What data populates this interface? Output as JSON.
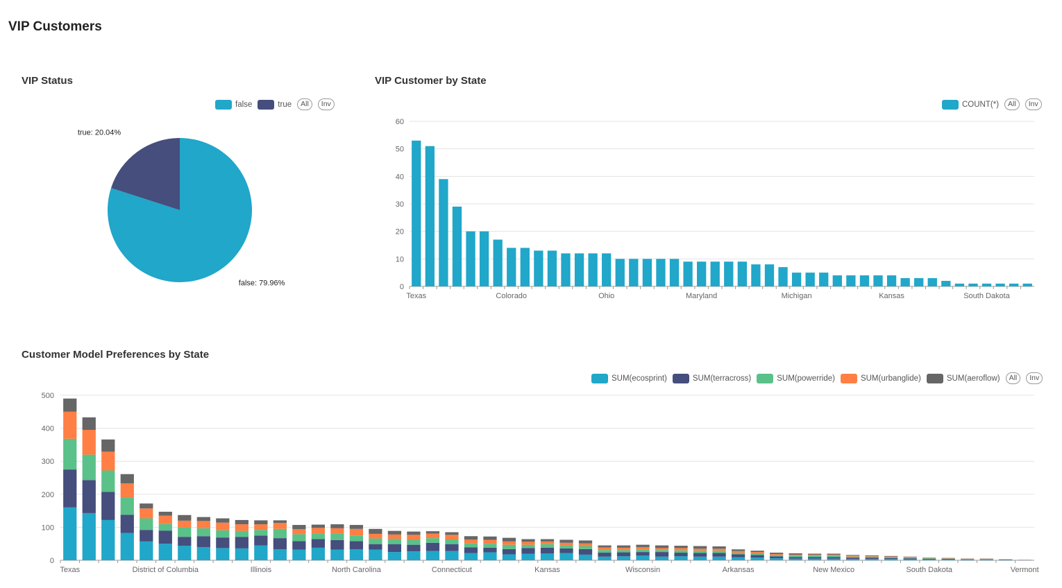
{
  "page": {
    "title": "VIP Customers"
  },
  "colors": {
    "c1": "#20a7c9",
    "c2": "#454e7c",
    "c3": "#5ac189",
    "c4": "#ff7f44",
    "c5": "#666666"
  },
  "panels": {
    "vip_status": {
      "title": "VIP Status",
      "legend": [
        {
          "label": "false",
          "color": "#20a7c9"
        },
        {
          "label": "true",
          "color": "#454e7c"
        }
      ],
      "all_label": "All",
      "inv_label": "Inv"
    },
    "vip_by_state": {
      "title": "VIP Customer by State",
      "legend": [
        {
          "label": "COUNT(*)",
          "color": "#20a7c9"
        }
      ],
      "all_label": "All",
      "inv_label": "Inv"
    },
    "model_prefs": {
      "title": "Customer Model Preferences by State",
      "legend": [
        {
          "label": "SUM(ecosprint)",
          "color": "#20a7c9"
        },
        {
          "label": "SUM(terracross)",
          "color": "#454e7c"
        },
        {
          "label": "SUM(powerride)",
          "color": "#5ac189"
        },
        {
          "label": "SUM(urbanglide)",
          "color": "#ff7f44"
        },
        {
          "label": "SUM(aeroflow)",
          "color": "#666666"
        }
      ],
      "all_label": "All",
      "inv_label": "Inv"
    }
  },
  "chart_data": [
    {
      "type": "pie",
      "title": "VIP Status",
      "slices": [
        {
          "name": "false",
          "value": 79.96,
          "label": "false: 79.96%",
          "color": "#20a7c9"
        },
        {
          "name": "true",
          "value": 20.04,
          "label": "true: 20.04%",
          "color": "#454e7c"
        }
      ]
    },
    {
      "type": "bar",
      "title": "VIP Customer by State",
      "ylim": [
        0,
        60
      ],
      "yticks": [
        0,
        10,
        20,
        30,
        40,
        50,
        60
      ],
      "x_tick_labels": [
        {
          "index": 0,
          "label": "Texas"
        },
        {
          "index": 7,
          "label": "Colorado"
        },
        {
          "index": 14,
          "label": "Ohio"
        },
        {
          "index": 21,
          "label": "Maryland"
        },
        {
          "index": 28,
          "label": "Michigan"
        },
        {
          "index": 35,
          "label": "Kansas"
        },
        {
          "index": 42,
          "label": "South Dakota"
        }
      ],
      "series": [
        {
          "name": "COUNT(*)",
          "color": "#20a7c9",
          "values": [
            53,
            51,
            39,
            29,
            20,
            20,
            17,
            14,
            14,
            13,
            13,
            12,
            12,
            12,
            12,
            10,
            10,
            10,
            10,
            10,
            9,
            9,
            9,
            9,
            9,
            8,
            8,
            7,
            5,
            5,
            5,
            4,
            4,
            4,
            4,
            4,
            3,
            3,
            3,
            2,
            1,
            1,
            1,
            1,
            1,
            1
          ]
        }
      ]
    },
    {
      "type": "bar",
      "stacked": true,
      "title": "Customer Model Preferences by State",
      "ylim": [
        0,
        500
      ],
      "yticks": [
        0,
        100,
        200,
        300,
        400,
        500
      ],
      "x_tick_labels": [
        {
          "index": 0,
          "label": "Texas"
        },
        {
          "index": 5,
          "label": "District of Columbia"
        },
        {
          "index": 10,
          "label": "Illinois"
        },
        {
          "index": 15,
          "label": "North Carolina"
        },
        {
          "index": 20,
          "label": "Connecticut"
        },
        {
          "index": 25,
          "label": "Kansas"
        },
        {
          "index": 30,
          "label": "Wisconsin"
        },
        {
          "index": 35,
          "label": "Arkansas"
        },
        {
          "index": 40,
          "label": "New Mexico"
        },
        {
          "index": 45,
          "label": "South Dakota"
        },
        {
          "index": 50,
          "label": "Vermont"
        }
      ],
      "series": [
        {
          "name": "SUM(ecosprint)",
          "color": "#20a7c9",
          "values": [
            160,
            143,
            122,
            83,
            57,
            50,
            44,
            40,
            37,
            36,
            45,
            33,
            32,
            38,
            32,
            33,
            32,
            25,
            27,
            28,
            28,
            22,
            24,
            18,
            20,
            21,
            22,
            17,
            11,
            12,
            14,
            11,
            12,
            11,
            11,
            9,
            8,
            6,
            5,
            5,
            5,
            4,
            4,
            4,
            3,
            2,
            2,
            1,
            1,
            1,
            0
          ]
        },
        {
          "name": "SUM(terracross)",
          "color": "#454e7c",
          "values": [
            115,
            100,
            85,
            55,
            35,
            40,
            27,
            33,
            32,
            35,
            30,
            34,
            26,
            26,
            29,
            25,
            17,
            24,
            20,
            25,
            21,
            17,
            14,
            16,
            17,
            17,
            14,
            17,
            12,
            12,
            11,
            14,
            11,
            11,
            11,
            9,
            8,
            6,
            5,
            5,
            5,
            4,
            4,
            3,
            3,
            2,
            2,
            1,
            1,
            1,
            1
          ]
        },
        {
          "name": "SUM(powerride)",
          "color": "#5ac189",
          "values": [
            93,
            77,
            65,
            53,
            35,
            20,
            29,
            24,
            22,
            18,
            17,
            28,
            21,
            16,
            19,
            17,
            17,
            16,
            15,
            14,
            14,
            13,
            12,
            13,
            10,
            11,
            9,
            9,
            8,
            7,
            8,
            6,
            7,
            7,
            7,
            5,
            5,
            4,
            4,
            4,
            4,
            3,
            3,
            2,
            2,
            2,
            1,
            1,
            1,
            1,
            0
          ]
        },
        {
          "name": "SUM(urbanglide)",
          "color": "#ff7f44",
          "values": [
            82,
            75,
            57,
            42,
            30,
            25,
            20,
            22,
            23,
            20,
            17,
            18,
            15,
            18,
            17,
            20,
            14,
            13,
            15,
            14,
            14,
            11,
            12,
            10,
            9,
            8,
            8,
            8,
            8,
            7,
            7,
            6,
            7,
            6,
            6,
            5,
            4,
            3,
            3,
            3,
            3,
            3,
            2,
            2,
            2,
            1,
            1,
            1,
            1,
            0,
            0
          ]
        },
        {
          "name": "SUM(aeroflow)",
          "color": "#666666",
          "values": [
            40,
            38,
            37,
            28,
            15,
            12,
            17,
            12,
            13,
            13,
            12,
            8,
            13,
            10,
            12,
            12,
            15,
            11,
            10,
            7,
            8,
            10,
            10,
            11,
            8,
            7,
            9,
            9,
            6,
            7,
            7,
            8,
            7,
            8,
            7,
            5,
            4,
            4,
            4,
            3,
            3,
            2,
            2,
            2,
            1,
            1,
            1,
            1,
            1,
            0,
            0
          ]
        }
      ]
    }
  ]
}
